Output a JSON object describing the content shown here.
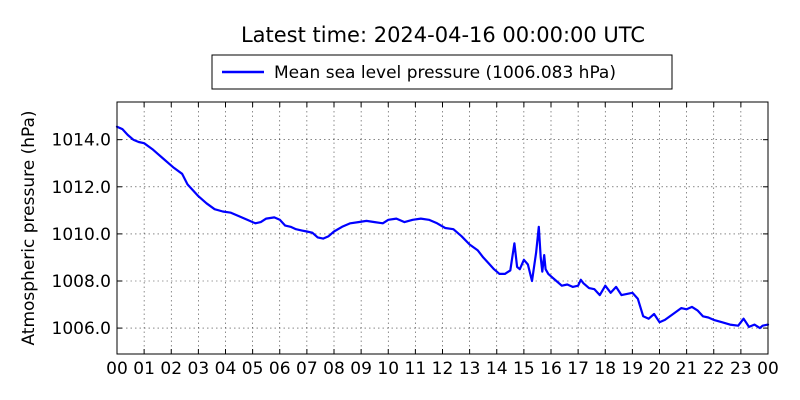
{
  "chart_data": {
    "type": "line",
    "title": "Latest time: 2024-04-16 00:00:00 UTC",
    "ylabel": "Atmospheric pressure (hPa)",
    "xlabel": "",
    "ylim": [
      1004.9,
      1015.6
    ],
    "xlim": [
      0,
      24
    ],
    "grid": true,
    "legend_position": "top-center",
    "x_tick_values": [
      0,
      1,
      2,
      3,
      4,
      5,
      6,
      7,
      8,
      9,
      10,
      11,
      12,
      13,
      14,
      15,
      16,
      17,
      18,
      19,
      20,
      21,
      22,
      23,
      24
    ],
    "x_tick_labels": [
      "00",
      "01",
      "02",
      "03",
      "04",
      "05",
      "06",
      "07",
      "08",
      "09",
      "10",
      "11",
      "12",
      "13",
      "14",
      "15",
      "16",
      "17",
      "18",
      "19",
      "20",
      "21",
      "22",
      "23",
      "00"
    ],
    "y_tick_values": [
      1006.0,
      1008.0,
      1010.0,
      1012.0,
      1014.0
    ],
    "y_tick_labels": [
      "1006.0",
      "1008.0",
      "1010.0",
      "1012.0",
      "1014.0"
    ],
    "series": [
      {
        "name": "Mean sea level pressure (1006.083 hPa)",
        "color": "#0000ff",
        "x": [
          0,
          0.2,
          0.4,
          0.6,
          0.8,
          1.0,
          1.3,
          1.5,
          1.7,
          1.9,
          2.1,
          2.4,
          2.6,
          2.8,
          3.0,
          3.3,
          3.6,
          3.9,
          4.2,
          4.5,
          4.8,
          5.1,
          5.3,
          5.5,
          5.8,
          6.0,
          6.2,
          6.4,
          6.6,
          6.8,
          7.0,
          7.2,
          7.4,
          7.6,
          7.8,
          8.0,
          8.3,
          8.6,
          8.9,
          9.2,
          9.5,
          9.8,
          10.0,
          10.3,
          10.6,
          10.9,
          11.2,
          11.5,
          11.8,
          12.1,
          12.4,
          12.7,
          13.0,
          13.3,
          13.5,
          13.7,
          13.9,
          14.1,
          14.3,
          14.5,
          14.65,
          14.75,
          14.85,
          15.0,
          15.15,
          15.3,
          15.45,
          15.55,
          15.62,
          15.68,
          15.75,
          15.8,
          15.9,
          16.0,
          16.2,
          16.4,
          16.6,
          16.8,
          17.0,
          17.1,
          17.2,
          17.4,
          17.6,
          17.8,
          18.0,
          18.2,
          18.4,
          18.6,
          18.8,
          19.0,
          19.2,
          19.4,
          19.6,
          19.8,
          20.0,
          20.2,
          20.5,
          20.8,
          21.0,
          21.2,
          21.4,
          21.6,
          21.8,
          22.0,
          22.3,
          22.6,
          22.9,
          23.1,
          23.3,
          23.5,
          23.7,
          23.8,
          24.0
        ],
        "y": [
          1014.55,
          1014.45,
          1014.2,
          1014.0,
          1013.9,
          1013.85,
          1013.6,
          1013.4,
          1013.2,
          1013.0,
          1012.8,
          1012.55,
          1012.1,
          1011.85,
          1011.6,
          1011.3,
          1011.05,
          1010.95,
          1010.9,
          1010.75,
          1010.6,
          1010.45,
          1010.5,
          1010.65,
          1010.7,
          1010.6,
          1010.35,
          1010.3,
          1010.2,
          1010.15,
          1010.1,
          1010.05,
          1009.85,
          1009.8,
          1009.9,
          1010.1,
          1010.3,
          1010.45,
          1010.5,
          1010.55,
          1010.5,
          1010.45,
          1010.6,
          1010.65,
          1010.5,
          1010.6,
          1010.65,
          1010.6,
          1010.45,
          1010.25,
          1010.2,
          1009.9,
          1009.55,
          1009.3,
          1009.0,
          1008.75,
          1008.5,
          1008.3,
          1008.3,
          1008.45,
          1009.6,
          1008.6,
          1008.5,
          1008.9,
          1008.7,
          1008.0,
          1009.2,
          1010.3,
          1009.0,
          1008.4,
          1009.1,
          1008.5,
          1008.3,
          1008.2,
          1008.0,
          1007.8,
          1007.85,
          1007.75,
          1007.8,
          1008.05,
          1007.9,
          1007.7,
          1007.65,
          1007.4,
          1007.8,
          1007.5,
          1007.75,
          1007.4,
          1007.45,
          1007.5,
          1007.25,
          1006.5,
          1006.4,
          1006.6,
          1006.25,
          1006.35,
          1006.6,
          1006.85,
          1006.8,
          1006.9,
          1006.75,
          1006.5,
          1006.45,
          1006.35,
          1006.25,
          1006.15,
          1006.1,
          1006.4,
          1006.05,
          1006.15,
          1006.0,
          1006.1,
          1006.15
        ]
      }
    ]
  }
}
